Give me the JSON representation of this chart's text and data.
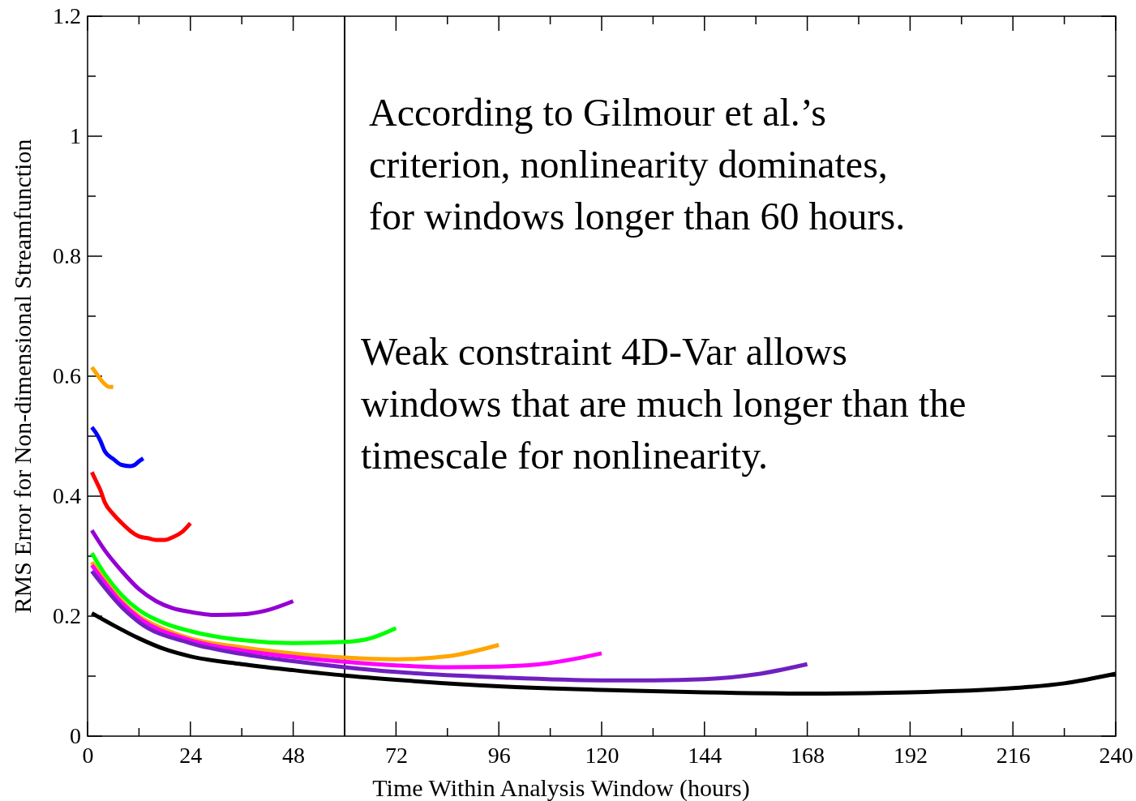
{
  "chart_data": {
    "type": "line",
    "xlabel": "Time Within Analysis Window (hours)",
    "ylabel": "RMS Error for Non-dimensional Streamfunction",
    "xlim": [
      0,
      240
    ],
    "ylim": [
      0,
      1.2
    ],
    "xticks": [
      0,
      {
        "value": 12,
        "label": null
      },
      24,
      {
        "value": 36,
        "label": null
      },
      48,
      {
        "value": 60,
        "label": null
      },
      72,
      {
        "value": 84,
        "label": null
      },
      96,
      {
        "value": 108,
        "label": null
      },
      120,
      {
        "value": 132,
        "label": null
      },
      144,
      {
        "value": 156,
        "label": null
      },
      168,
      {
        "value": 180,
        "label": null
      },
      192,
      {
        "value": 204,
        "label": null
      },
      216,
      {
        "value": 228,
        "label": null
      },
      240
    ],
    "yticks": [
      0,
      {
        "value": 0.1,
        "label": null
      },
      0.2,
      {
        "value": 0.3,
        "label": null
      },
      0.4,
      {
        "value": 0.5,
        "label": null
      },
      0.6,
      {
        "value": 0.7,
        "label": null
      },
      0.8,
      {
        "value": 0.9,
        "label": null
      },
      1,
      {
        "value": 1.1,
        "label": null
      },
      1.2
    ],
    "grid": false,
    "line_style": "solid",
    "marker": "none",
    "ref_lines": [
      {
        "axis": "x",
        "value": 60,
        "color": "#000000"
      }
    ],
    "annotations": [
      "According to Gilmour et al.’s\ncriterion, nonlinearity dominates,\nfor windows longer than 60 hours.",
      "Weak constraint 4D-Var allows\nwindows that are much longer than the\ntimescale for nonlinearity."
    ],
    "series": [
      {
        "color": "#ffa500",
        "x": [
          1,
          2,
          3,
          4,
          5,
          6
        ],
        "values": [
          0.615,
          0.605,
          0.595,
          0.587,
          0.582,
          0.582
        ]
      },
      {
        "color": "#0000ff",
        "x": [
          1,
          2,
          3,
          4,
          6,
          8,
          10,
          11,
          12,
          13
        ],
        "values": [
          0.515,
          0.505,
          0.492,
          0.475,
          0.462,
          0.452,
          0.45,
          0.452,
          0.458,
          0.463
        ]
      },
      {
        "color": "#ff0000",
        "x": [
          1,
          2,
          3,
          4,
          6,
          8,
          10,
          12,
          14,
          16,
          18,
          20,
          22,
          24
        ],
        "values": [
          0.44,
          0.425,
          0.41,
          0.39,
          0.37,
          0.355,
          0.342,
          0.333,
          0.33,
          0.327,
          0.327,
          0.332,
          0.34,
          0.355
        ]
      },
      {
        "color": "#9400d3",
        "x": [
          1,
          4,
          8,
          12,
          16,
          20,
          24,
          30,
          36,
          42,
          48
        ],
        "values": [
          0.343,
          0.31,
          0.275,
          0.245,
          0.225,
          0.213,
          0.207,
          0.202,
          0.203,
          0.21,
          0.225
        ]
      },
      {
        "color": "#00ff00",
        "x": [
          1,
          4,
          8,
          12,
          18,
          24,
          36,
          48,
          60,
          66,
          72
        ],
        "values": [
          0.305,
          0.27,
          0.235,
          0.21,
          0.188,
          0.175,
          0.16,
          0.155,
          0.157,
          0.163,
          0.18
        ]
      },
      {
        "color": "#ffa500",
        "x": [
          1,
          4,
          8,
          12,
          18,
          24,
          36,
          48,
          60,
          72,
          84,
          96
        ],
        "values": [
          0.29,
          0.26,
          0.225,
          0.2,
          0.178,
          0.163,
          0.148,
          0.138,
          0.131,
          0.128,
          0.133,
          0.152
        ]
      },
      {
        "color": "#ff00ff",
        "x": [
          1,
          8,
          12,
          24,
          36,
          48,
          60,
          72,
          84,
          96,
          108,
          120
        ],
        "values": [
          0.285,
          0.222,
          0.197,
          0.16,
          0.143,
          0.132,
          0.124,
          0.118,
          0.115,
          0.116,
          0.122,
          0.138
        ]
      },
      {
        "color": "#7020c0",
        "x": [
          1,
          8,
          12,
          24,
          36,
          48,
          60,
          72,
          96,
          120,
          132,
          144,
          156,
          168
        ],
        "values": [
          0.275,
          0.215,
          0.19,
          0.155,
          0.137,
          0.125,
          0.115,
          0.107,
          0.098,
          0.093,
          0.093,
          0.095,
          0.103,
          0.12
        ]
      },
      {
        "color": "#000000",
        "x": [
          1,
          6,
          12,
          18,
          24,
          36,
          48,
          60,
          72,
          96,
          120,
          144,
          168,
          192,
          216,
          228,
          240
        ],
        "values": [
          0.205,
          0.185,
          0.163,
          0.145,
          0.133,
          0.12,
          0.11,
          0.101,
          0.094,
          0.083,
          0.077,
          0.073,
          0.071,
          0.073,
          0.08,
          0.088,
          0.104
        ]
      }
    ]
  }
}
